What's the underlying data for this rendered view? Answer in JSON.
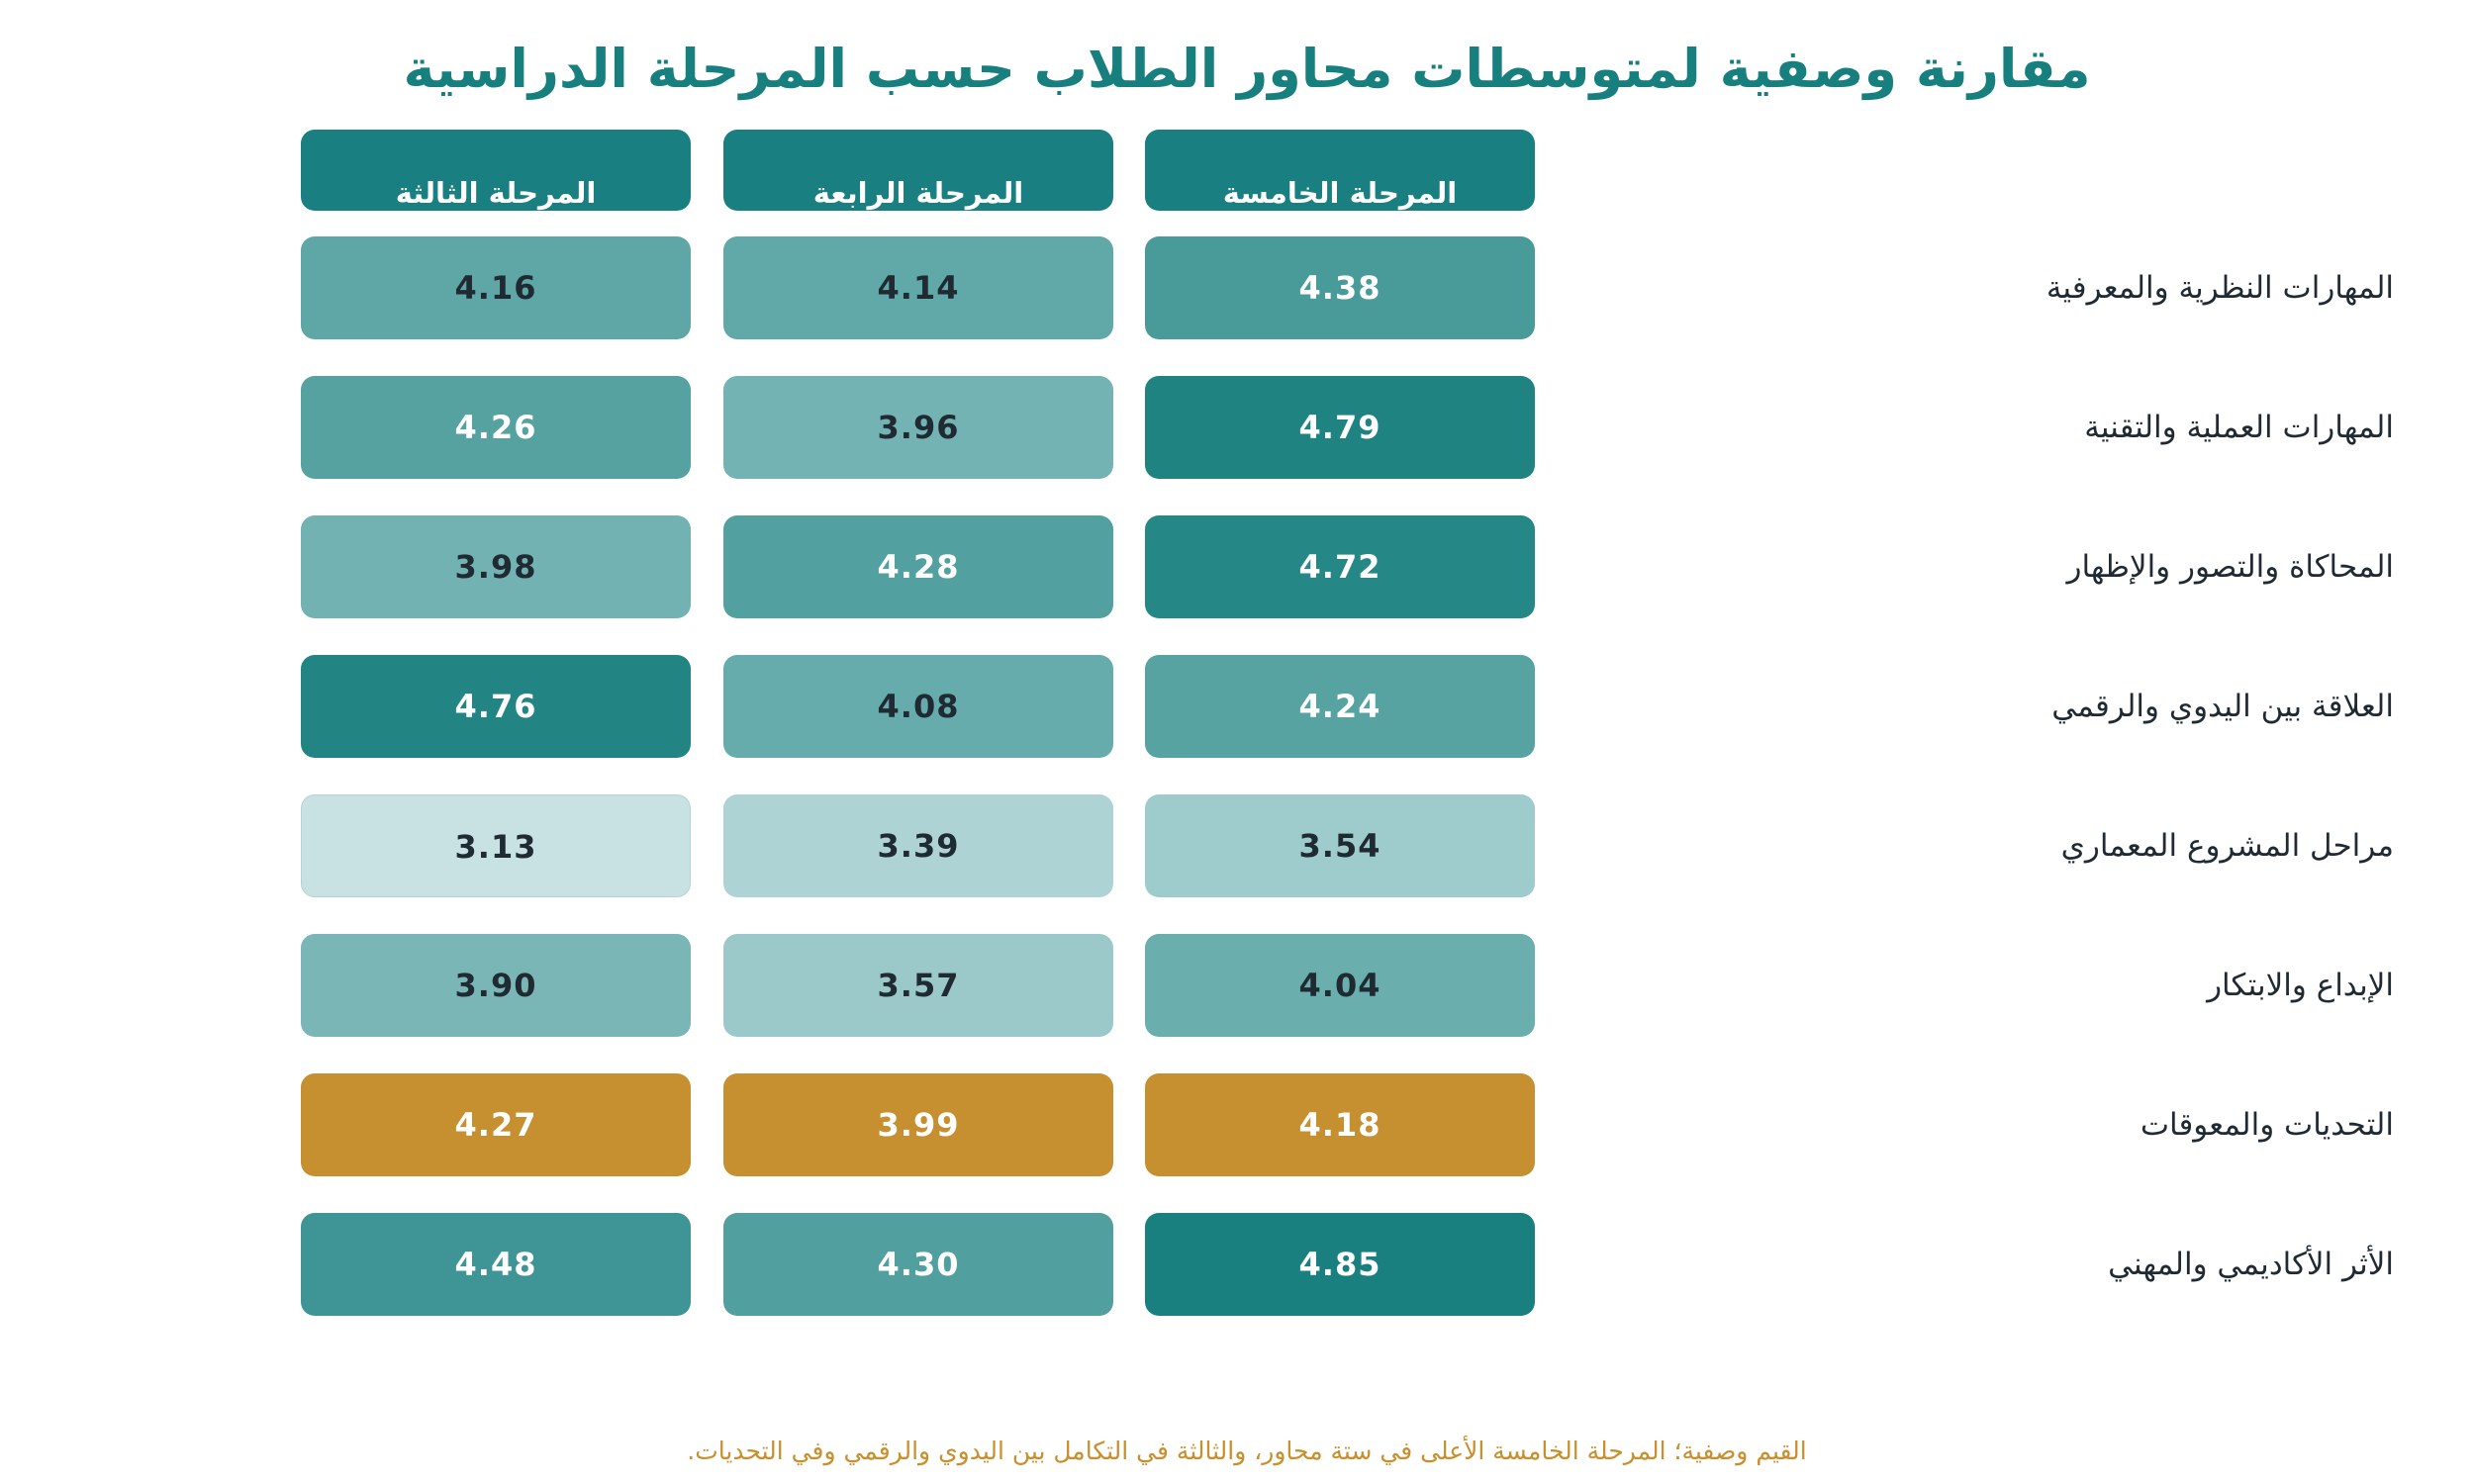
{
  "chart_data": {
    "type": "heatmap",
    "title": "مقارنة وصفية لمتوسطات محاور الطلاب حسب المرحلة الدراسية",
    "columns": [
      "المرحلة الخامسة",
      "المرحلة الرابعة",
      "المرحلة الثالثة"
    ],
    "rows": [
      {
        "label": "المهارات النظرية والمعرفية",
        "values": [
          "4.38",
          "4.14",
          "4.16"
        ]
      },
      {
        "label": "المهارات العملية والتقنية",
        "values": [
          "4.79",
          "3.96",
          "4.26"
        ]
      },
      {
        "label": "المحاكاة والتصور والإظهار",
        "values": [
          "4.72",
          "4.28",
          "3.98"
        ]
      },
      {
        "label": "العلاقة بين اليدوي والرقمي",
        "values": [
          "4.24",
          "4.08",
          "4.76"
        ]
      },
      {
        "label": "مراحل المشروع المعماري",
        "values": [
          "3.54",
          "3.39",
          "3.13"
        ]
      },
      {
        "label": "الإبداع والابتكار",
        "values": [
          "4.04",
          "3.57",
          "3.90"
        ]
      },
      {
        "label": "التحديات والمعوقات",
        "values": [
          "4.18",
          "3.99",
          "4.27"
        ],
        "highlight": true
      },
      {
        "label": "الأثر الأكاديمي والمهني",
        "values": [
          "4.85",
          "4.30",
          "4.48"
        ]
      }
    ],
    "footnote": "القيم وصفية؛ المرحلة الخامسة الأعلى في ستة محاور، والثالثة في التكامل بين اليدوي والرقمي وفي التحديات.",
    "colors": {
      "accent": "#17807f",
      "header": "#197f81",
      "scale_low": "#c8e2e3",
      "scale_high": "#19807f",
      "highlight": "#c68f2f",
      "dark_text": "#1f2a33",
      "footnote": "#c98f2c"
    },
    "value_range": [
      3.13,
      4.85
    ]
  }
}
